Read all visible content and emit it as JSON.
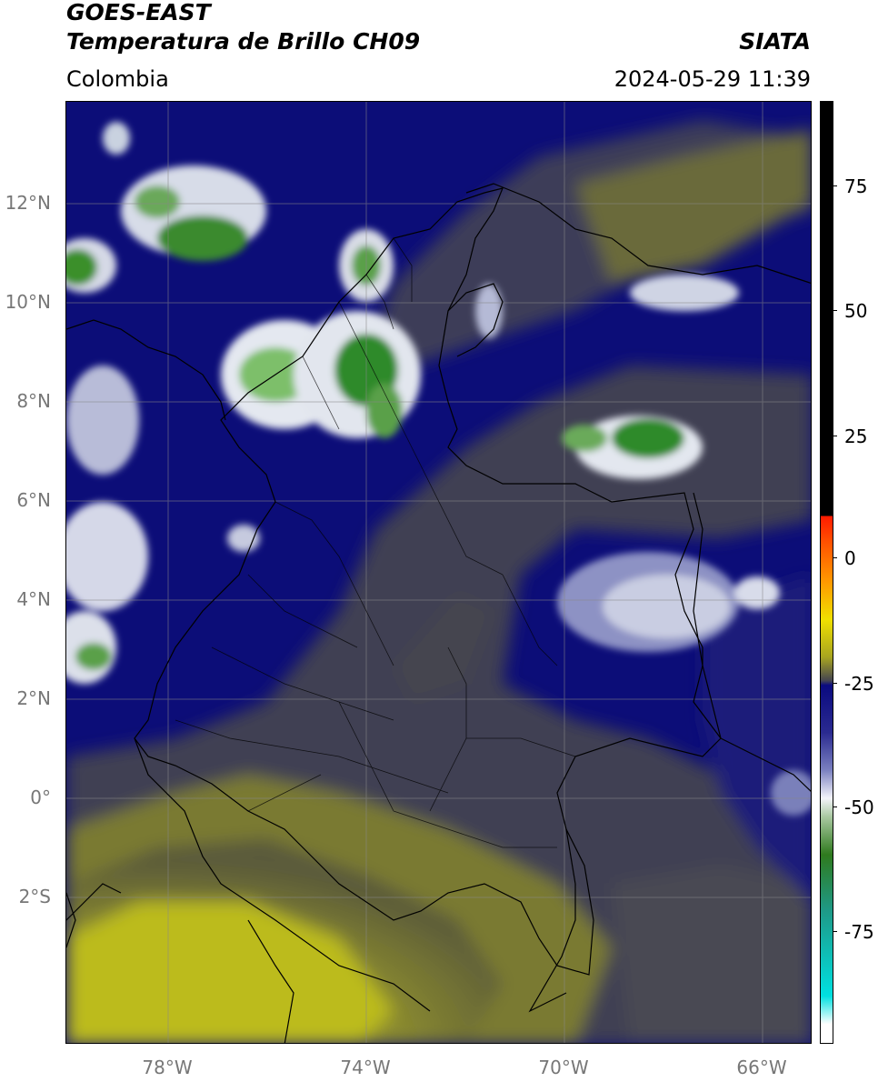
{
  "header": {
    "title_line1": "GOES-EAST",
    "title_line2": "Temperatura de Brillo CH09",
    "source": "SIATA",
    "region": "Colombia",
    "timestamp": "2024-05-29 11:39"
  },
  "map": {
    "lat_ticks": [
      "12°N",
      "10°N",
      "8°N",
      "6°N",
      "4°N",
      "2°N",
      "0°",
      "2°S"
    ],
    "lon_ticks": [
      "78°W",
      "74°W",
      "70°W",
      "66°W"
    ],
    "extent": {
      "lon_min": -80,
      "lon_max": -65,
      "lat_min": -5,
      "lat_max": 14
    },
    "layers": [
      "brightness-temperature",
      "country-borders",
      "department-borders",
      "graticule"
    ]
  },
  "colorbar": {
    "ticks": [
      "75",
      "50",
      "25",
      "0",
      "-25",
      "-50",
      "-75"
    ],
    "range": [
      -95,
      90
    ],
    "colors": {
      "warm_black": "#000000",
      "red": "#ff1a00",
      "orange": "#ff9900",
      "yellow": "#f0e000",
      "olive": "#a8a520",
      "gray": "#454550",
      "navy": "#0a0a80",
      "white": "#f4f4fa",
      "green": "#2f7a1e",
      "teal": "#1e9a88",
      "cyan": "#00e0e0"
    }
  }
}
